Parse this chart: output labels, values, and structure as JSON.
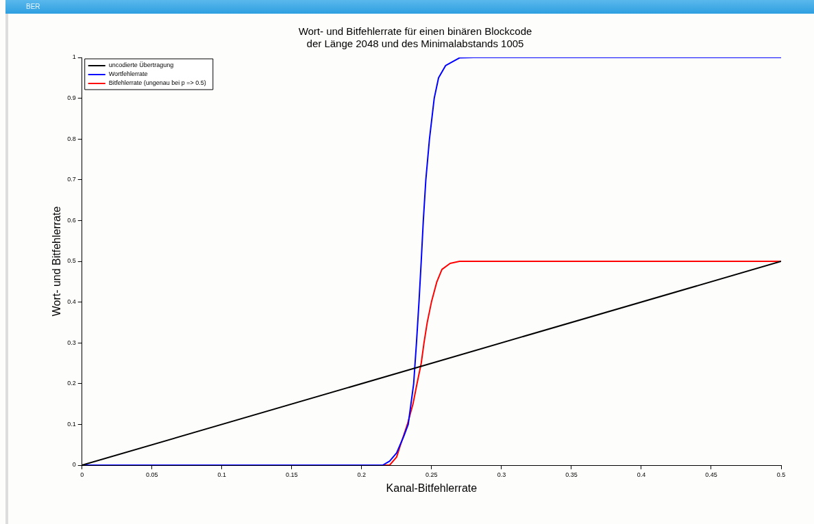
{
  "chart_data": {
    "type": "line",
    "title": "Wort- und Bitfehlerrate für einen binären Blockcode\nder Länge 2048 und des Minimalabstands 1005",
    "xlabel": "Kanal-Bitfehlerrate",
    "ylabel": "Wort- und Bitfehlerrate",
    "annotations": [
      "BER"
    ],
    "xlim": [
      0,
      0.5
    ],
    "xticks": [
      0,
      0.05,
      0.1,
      0.15,
      0.2,
      0.25,
      0.3,
      0.35,
      0.4,
      0.45,
      0.5
    ],
    "ylim": [
      0,
      1
    ],
    "yticks": [
      0,
      0.1,
      0.2,
      0.3,
      0.4,
      0.5,
      0.6,
      0.7,
      0.8,
      0.9,
      1
    ],
    "grid": false,
    "legend": "top left",
    "marker": "none",
    "line_style": "solid",
    "series": [
      {
        "name": "uncodierte Übertragung",
        "color": "#000000",
        "x": [
          0,
          0.5
        ],
        "values": [
          0,
          0.5
        ]
      },
      {
        "name": "Wortfehlerrate",
        "color": "#0000ff",
        "x": [
          0,
          0.215,
          0.22,
          0.225,
          0.23,
          0.2333,
          0.2372,
          0.2392,
          0.241,
          0.2426,
          0.2441,
          0.2459,
          0.2485,
          0.2519,
          0.255,
          0.26,
          0.2653,
          0.27,
          0.28,
          0.5
        ],
        "values": [
          0,
          0,
          0.01,
          0.03,
          0.07,
          0.1,
          0.2,
          0.3,
          0.4,
          0.5,
          0.6,
          0.7,
          0.8,
          0.9,
          0.95,
          0.98,
          0.99,
          0.999,
          1,
          1
        ]
      },
      {
        "name": "Bitfehlerrate (ungenau bei p => 0.5)",
        "color": "#ff0000",
        "x": [
          0,
          0.22,
          0.225,
          0.2278,
          0.2327,
          0.2367,
          0.2396,
          0.2426,
          0.2446,
          0.2469,
          0.2499,
          0.2538,
          0.2574,
          0.2633,
          0.27,
          0.5
        ],
        "values": [
          0,
          0,
          0.02,
          0.05,
          0.1,
          0.15,
          0.2,
          0.25,
          0.3,
          0.35,
          0.4,
          0.45,
          0.48,
          0.495,
          0.5,
          0.5
        ]
      }
    ]
  }
}
